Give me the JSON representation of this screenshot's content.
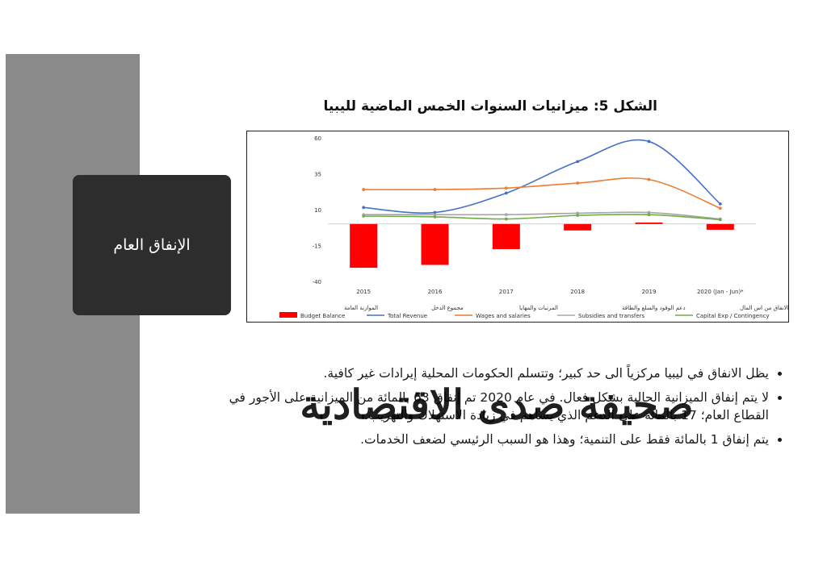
{
  "slide": {
    "topic": "الإنفاق العام",
    "figure_title": "الشكل 5: ميزانيات السنوات الخمس الماضية لليبيا",
    "bullets": [
      "يظل الانفاق في ليبيا مركزياً الى حد كبير؛ وتتسلم الحكومات المحلية إيرادات غير كافية.",
      "لا يتم إنفاق الميزانية الحالية بشكل فعال. في عام 2020 تم إنفاق 63 بالمائة من الميزانية على الأجور في القطاع العام؛ 17 بالمائة على الدعم الذي يساهم في زيادة الاستهلاك والتهريب.",
      "يتم إنفاق 1 بالمائة فقط على التنمية؛ وهذا هو السبب الرئيسي لضعف الخدمات."
    ],
    "watermark": "صحيفة صدى الاقتصادية"
  },
  "chart_data": {
    "type": "bar",
    "title": "",
    "categories": [
      "2015",
      "2016",
      "2017",
      "2018",
      "2019",
      "2020 (Jan - Jun)*"
    ],
    "ylim": [
      -40,
      60
    ],
    "yticks": [
      60,
      35,
      10,
      -15,
      -40
    ],
    "grid": false,
    "legend_position": "bottom",
    "series": [
      {
        "name": "Budget Balance",
        "name_ar": "الموازنة العامة",
        "kind": "bar",
        "color": "#ff0000",
        "values": [
          -30.5,
          -28.5,
          -17.5,
          -4.5,
          1.0,
          -4.0
        ]
      },
      {
        "name": "Total Revenue",
        "name_ar": "مجموع الدخل",
        "kind": "line",
        "color": "#4472c4",
        "values": [
          11.5,
          8.0,
          21.5,
          43.5,
          57.5,
          14.0
        ]
      },
      {
        "name": "Wages and salaries",
        "name_ar": "المرتبات والمهايا",
        "kind": "line",
        "color": "#ed7d31",
        "values": [
          24.0,
          24.0,
          25.0,
          28.5,
          31.0,
          11.0
        ]
      },
      {
        "name": "Subsidies and transfers",
        "name_ar": "دعم الوقود والسلع والطاقة",
        "kind": "line",
        "color": "#a5a5a5",
        "values": [
          6.5,
          6.5,
          6.5,
          7.5,
          8.0,
          3.5
        ]
      },
      {
        "name": "Capital Exp / Contingency",
        "name_ar": "الانفاق من اس المال",
        "kind": "line",
        "color": "#70ad47",
        "values": [
          5.5,
          5.0,
          3.5,
          6.0,
          6.5,
          3.0
        ]
      }
    ]
  }
}
